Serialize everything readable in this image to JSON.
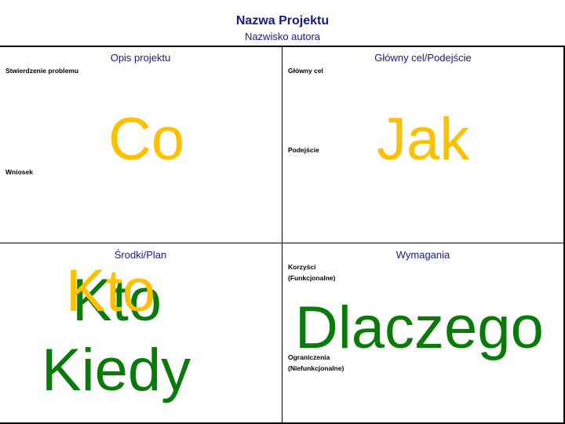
{
  "header": {
    "title": "Nazwa Projektu",
    "subtitle": "Nazwisko autora"
  },
  "quadrants": {
    "top_left": {
      "heading": "Opis projektu",
      "label_1": "Stwierdzenie problemu",
      "label_2": "Wniosek",
      "big_word": "Co"
    },
    "top_right": {
      "heading": "Główny cel/Podejście",
      "label_1": "Główny cel",
      "label_2": "Podejście",
      "big_word": "Jak"
    },
    "bottom_left": {
      "heading": "Środki/Plan",
      "big_word_yellow": "Kto",
      "big_word_green_1": "Kto",
      "big_word_green_2": "Kiedy"
    },
    "bottom_right": {
      "heading": "Wymagania",
      "label_1a": "Korzyści",
      "label_1b": "(Funkcjonalne)",
      "label_2a": "Ograniczenia",
      "label_2b": "(Niefunkcjonalne)",
      "big_word": "Dlaczego"
    }
  },
  "colors": {
    "heading_text": "#1a1a7a",
    "yellow": "#ffc000",
    "green": "#0a7a0a"
  }
}
